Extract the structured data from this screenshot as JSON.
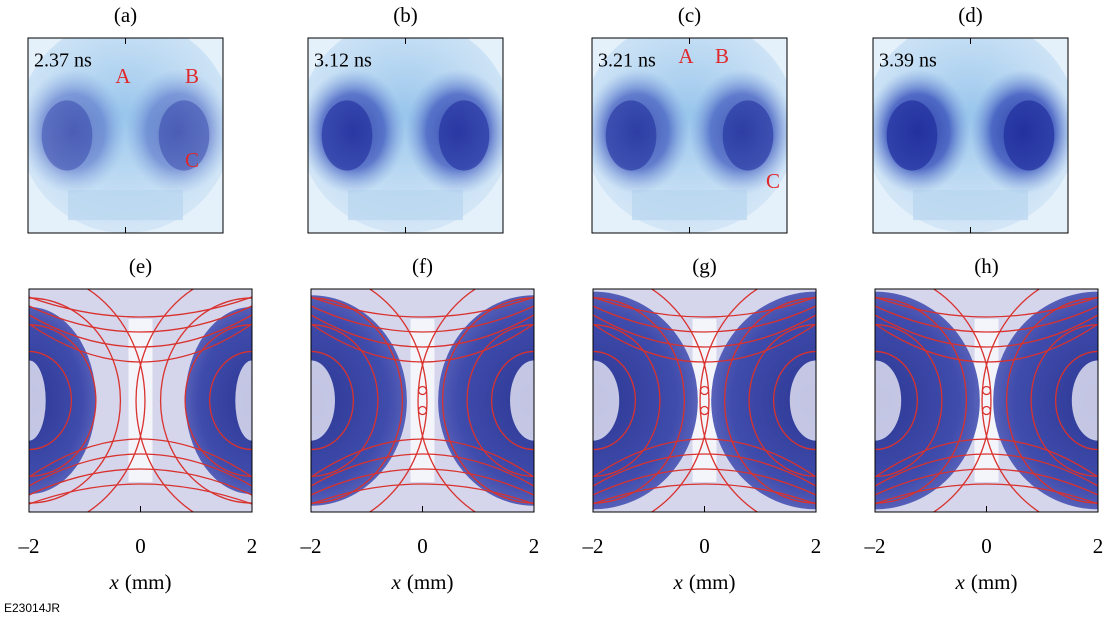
{
  "top_panels": [
    {
      "label": "(a)",
      "time": "2.37 ns",
      "markers": [
        "A",
        "B",
        "C"
      ]
    },
    {
      "label": "(b)",
      "time": "3.12 ns",
      "markers": []
    },
    {
      "label": "(c)",
      "time": "3.21 ns",
      "markers": [
        "A",
        "B",
        "C"
      ]
    },
    {
      "label": "(d)",
      "time": "3.39 ns",
      "markers": []
    }
  ],
  "bottom_panels": [
    {
      "label": "(e)"
    },
    {
      "label": "(f)"
    },
    {
      "label": "(g)"
    },
    {
      "label": "(h)"
    }
  ],
  "x_axis": {
    "variable": "x",
    "unit": "(mm)",
    "xlim": [
      -2,
      2
    ],
    "xticks": [
      {
        "value": -2,
        "label": "–2"
      },
      0,
      2
    ]
  },
  "figure_id": "E23014JR"
}
